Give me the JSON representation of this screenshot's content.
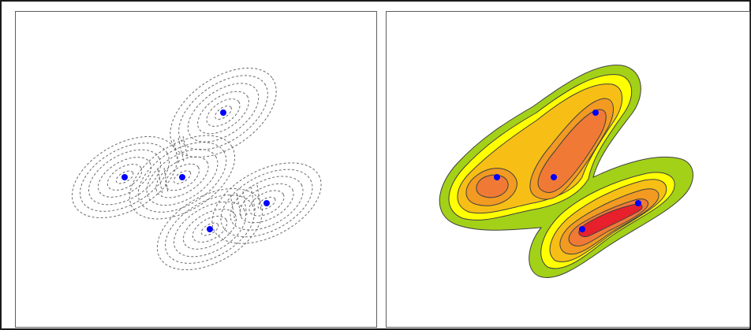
{
  "figure": {
    "left_panel": {
      "description_name": "kernel-density-components",
      "points": [
        {
          "id": "p1",
          "color": "#0000ff"
        },
        {
          "id": "p2",
          "color": "#0000ff"
        },
        {
          "id": "p3",
          "color": "#0000ff"
        },
        {
          "id": "p4",
          "color": "#0000ff"
        },
        {
          "id": "p5",
          "color": "#0000ff"
        },
        {
          "id": "p6",
          "color": "#0000ff"
        }
      ],
      "contour_color": "#6b6b6b"
    },
    "right_panel": {
      "description_name": "kernel-density-sum",
      "level_colors": [
        "#a3d118",
        "#ffff00",
        "#f7bf15",
        "#f29a22",
        "#f07a35",
        "#e8202c"
      ],
      "point_color": "#0000ff",
      "outline_color": "#404040"
    }
  }
}
